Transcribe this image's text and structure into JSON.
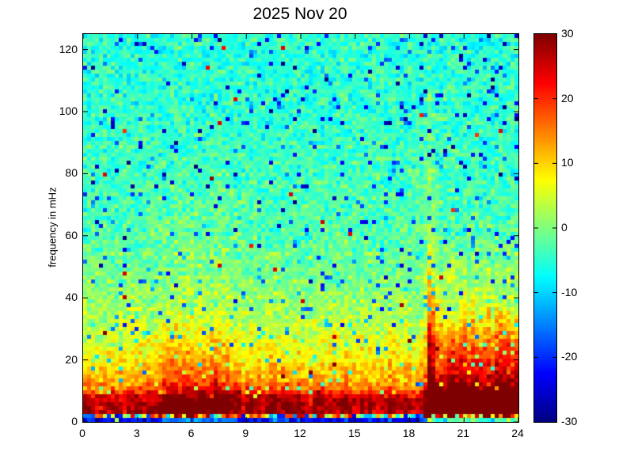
{
  "figure": {
    "background_color": "#ffffff",
    "text_color": "#000000"
  },
  "chart_data": {
    "type": "heatmap",
    "title": "2025 Nov 20",
    "xlabel": "",
    "ylabel": "frequency in mHz",
    "xlim": [
      0,
      24
    ],
    "ylim": [
      0,
      125
    ],
    "x_ticks": [
      0,
      3,
      6,
      9,
      12,
      15,
      18,
      21,
      24
    ],
    "y_ticks": [
      0,
      20,
      40,
      60,
      80,
      100,
      120
    ],
    "grid": false,
    "colormap": "jet",
    "colorbar": {
      "min": -30,
      "max": 30,
      "ticks": [
        30,
        20,
        10,
        0,
        -10,
        -20,
        -30
      ],
      "position": "right"
    },
    "resolution": {
      "cols": 110,
      "rows": 98
    },
    "noise_sd_db": 3.2,
    "blue_speckle_probability": 0.055,
    "maroon_speckle_probability": 0.0035,
    "bottom_row": {
      "f_range": [
        0,
        1.2
      ],
      "value_db": -24
    },
    "transition_row": {
      "f_range": [
        1.2,
        2.6
      ],
      "value_range_db": [
        -25,
        25
      ]
    },
    "base_profile_db": [
      [
        0,
        -24
      ],
      [
        1.2,
        -24
      ],
      [
        1.9,
        0
      ],
      [
        2.6,
        26
      ],
      [
        6,
        27
      ],
      [
        8.5,
        23
      ],
      [
        10,
        17
      ],
      [
        13,
        12
      ],
      [
        16,
        10
      ],
      [
        20,
        8
      ],
      [
        25,
        6
      ],
      [
        30,
        3.5
      ],
      [
        38,
        1.5
      ],
      [
        48,
        -0.5
      ],
      [
        60,
        -2.5
      ],
      [
        75,
        -3.5
      ],
      [
        95,
        -4.5
      ],
      [
        125,
        -5
      ]
    ],
    "events": [
      {
        "t": 4.55,
        "amp_db": 7,
        "fmax_mhz": 42,
        "width_h": 0.22
      },
      {
        "t": 5.1,
        "amp_db": 9,
        "fmax_mhz": 48,
        "width_h": 0.18
      },
      {
        "t": 5.55,
        "amp_db": 6,
        "fmax_mhz": 38,
        "width_h": 0.15
      },
      {
        "t": 6.05,
        "amp_db": 7,
        "fmax_mhz": 44,
        "width_h": 0.25
      },
      {
        "t": 6.6,
        "amp_db": 6,
        "fmax_mhz": 36,
        "width_h": 0.18
      },
      {
        "t": 6.2,
        "amp_db": 3,
        "fmax_mhz": 45,
        "width_h": 1.8
      },
      {
        "t": 7.35,
        "amp_db": 9,
        "fmax_mhz": 50,
        "width_h": 0.22
      },
      {
        "t": 7.85,
        "amp_db": 8,
        "fmax_mhz": 46,
        "width_h": 0.15
      },
      {
        "t": 8.4,
        "amp_db": 5,
        "fmax_mhz": 30,
        "width_h": 0.18
      },
      {
        "t": 9.3,
        "amp_db": 4,
        "fmax_mhz": 26,
        "width_h": 0.15
      },
      {
        "t": 10.55,
        "amp_db": 6,
        "fmax_mhz": 34,
        "width_h": 0.2
      },
      {
        "t": 11.3,
        "amp_db": 4,
        "fmax_mhz": 28,
        "width_h": 0.18
      },
      {
        "t": 12.0,
        "amp_db": 5,
        "fmax_mhz": 30,
        "width_h": 0.22
      },
      {
        "t": 13.15,
        "amp_db": 5,
        "fmax_mhz": 32,
        "width_h": 0.2
      },
      {
        "t": 14.5,
        "amp_db": 4,
        "fmax_mhz": 24,
        "width_h": 0.18
      },
      {
        "t": 15.6,
        "amp_db": 3,
        "fmax_mhz": 22,
        "width_h": 0.15
      },
      {
        "t": 16.9,
        "amp_db": 4,
        "fmax_mhz": 26,
        "width_h": 0.18
      },
      {
        "t": 17.8,
        "amp_db": 4,
        "fmax_mhz": 28,
        "width_h": 0.15
      },
      {
        "t": 19.15,
        "amp_db": 15,
        "fmax_mhz": 68,
        "width_h": 0.12
      },
      {
        "t": 19.2,
        "amp_db": 7,
        "fmax_mhz": 115,
        "width_h": 0.2
      },
      {
        "t": 20.35,
        "amp_db": 8,
        "fmax_mhz": 42,
        "width_h": 0.18
      },
      {
        "t": 21.0,
        "amp_db": 7,
        "fmax_mhz": 40,
        "width_h": 0.18
      },
      {
        "t": 21.65,
        "amp_db": 8,
        "fmax_mhz": 46,
        "width_h": 0.15
      },
      {
        "t": 22.3,
        "amp_db": 7,
        "fmax_mhz": 42,
        "width_h": 0.18
      },
      {
        "t": 22.95,
        "amp_db": 8,
        "fmax_mhz": 44,
        "width_h": 0.15
      },
      {
        "t": 23.5,
        "amp_db": 7,
        "fmax_mhz": 40,
        "width_h": 0.15
      },
      {
        "t": 23.95,
        "amp_db": 6,
        "fmax_mhz": 36,
        "width_h": 0.1
      }
    ],
    "enhanced_interval_h": {
      "start": 18.8,
      "end": 24,
      "amp_db": 12,
      "fmax_mhz_range": [
        28,
        48
      ]
    }
  }
}
